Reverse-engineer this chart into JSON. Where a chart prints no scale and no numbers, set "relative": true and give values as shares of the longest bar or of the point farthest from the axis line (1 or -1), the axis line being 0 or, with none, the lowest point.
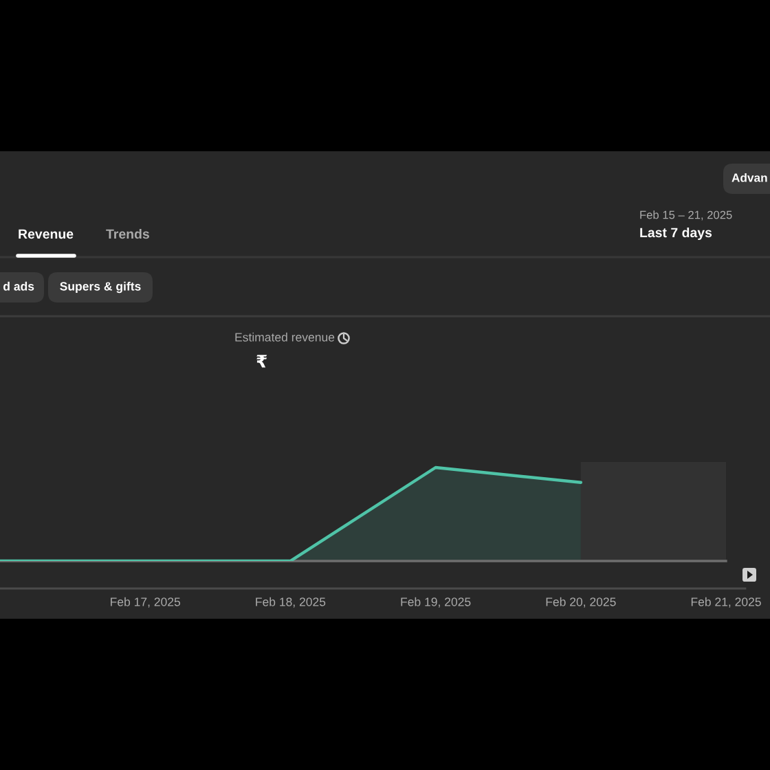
{
  "chart_data": {
    "type": "area",
    "title": "Estimated revenue",
    "subtitle": "₹",
    "annotations": [
      "Revenue",
      "Trends",
      "Feb 15 – 21, 2025",
      "Last 7 days",
      "Advan",
      "d ads",
      "Supers & gifts"
    ],
    "x": [
      "2025-02-16",
      "2025-02-17",
      "2025-02-18",
      "2025-02-19",
      "2025-02-20"
    ],
    "series": [
      {
        "color": "#4fc3a7",
        "values": [
          0,
          0,
          0,
          1,
          0.84
        ]
      }
    ],
    "relative": true,
    "xlim": [
      "2025-02-16",
      "2025-02-21"
    ],
    "xticks": [
      {
        "value": "2025-02-17",
        "label": "Feb 17, 2025"
      },
      {
        "value": "2025-02-18",
        "label": "Feb 18, 2025"
      },
      {
        "value": "2025-02-19",
        "label": "Feb 19, 2025"
      },
      {
        "value": "2025-02-20",
        "label": "Feb 20, 2025"
      },
      {
        "value": "2025-02-21",
        "label": "Feb 21, 2025"
      }
    ],
    "bands": [
      {
        "axis": "x",
        "from": "2025-02-20",
        "to": "2025-02-21",
        "color": "#323232"
      }
    ]
  }
}
